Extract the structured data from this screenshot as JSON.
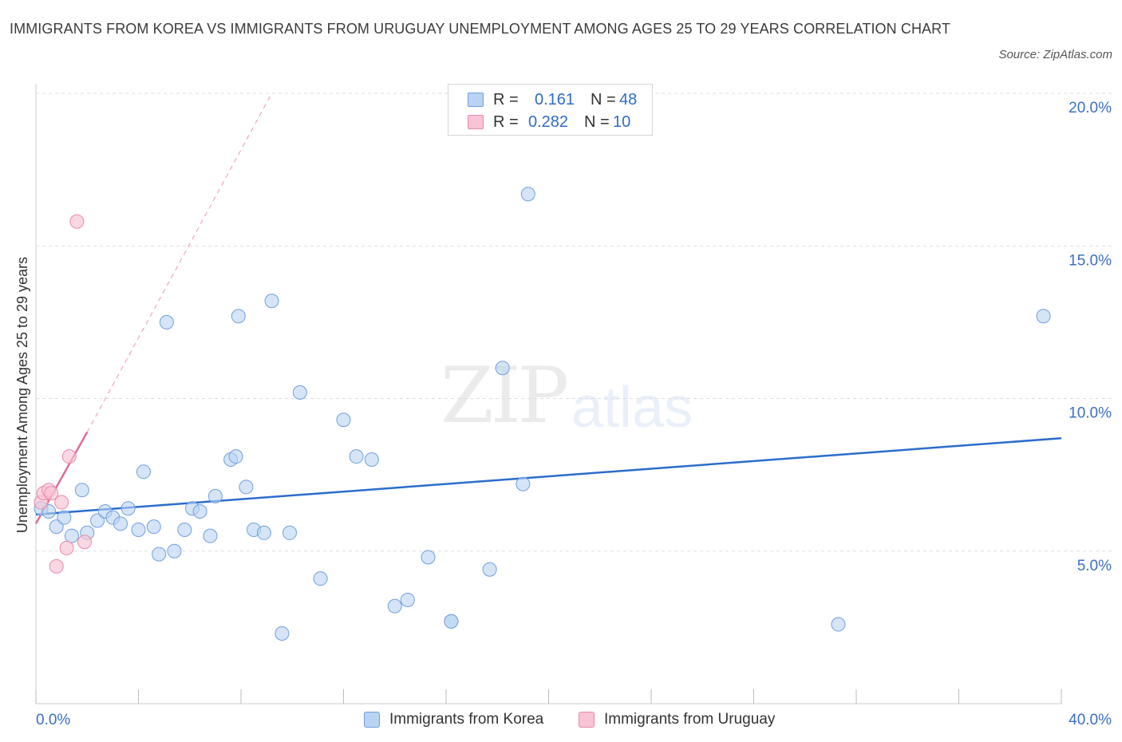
{
  "title": "IMMIGRANTS FROM KOREA VS IMMIGRANTS FROM URUGUAY UNEMPLOYMENT AMONG AGES 25 TO 29 YEARS CORRELATION CHART",
  "source": "Source: ZipAtlas.com",
  "watermark": {
    "zip": "ZIP",
    "atlas": "atlas"
  },
  "legend": {
    "korea": {
      "r_label": "R =",
      "r_value": "0.161",
      "n_label": "N =",
      "n_value": "48"
    },
    "uruguay": {
      "r_label": "R =",
      "r_value": "0.282",
      "n_label": "N =",
      "n_value": "10"
    }
  },
  "bottom_legend": {
    "korea": "Immigrants from Korea",
    "uruguay": "Immigrants from Uruguay"
  },
  "colors": {
    "korea_fill": "#b9d3f2",
    "korea_stroke": "#6f9fe0",
    "korea_line": "#2a6dcc",
    "uruguay_fill": "#f8c3d4",
    "uruguay_stroke": "#e889a8",
    "uruguay_line": "#e06a98",
    "grid": "#dddddd",
    "axis_text": "#3a6fc4"
  },
  "chart_data": {
    "type": "scatter",
    "title": "IMMIGRANTS FROM KOREA VS IMMIGRANTS FROM URUGUAY UNEMPLOYMENT AMONG AGES 25 TO 29 YEARS CORRELATION CHART",
    "xlabel": "",
    "ylabel": "Unemployment Among Ages 25 to 29 years",
    "xlim": [
      0,
      40
    ],
    "ylim": [
      0,
      20
    ],
    "x_tick_labels": [
      {
        "value": 0,
        "label": "0.0%"
      },
      {
        "value": 40,
        "label": "40.0%"
      }
    ],
    "y_tick_labels": [
      {
        "value": 5,
        "label": "5.0%"
      },
      {
        "value": 10,
        "label": "10.0%"
      },
      {
        "value": 15,
        "label": "15.0%"
      },
      {
        "value": 20,
        "label": "20.0%"
      }
    ],
    "series": [
      {
        "name": "Immigrants from Korea",
        "trend": {
          "x": [
            0,
            40
          ],
          "y": [
            6.2,
            8.7
          ]
        },
        "points": [
          {
            "x": 0.2,
            "y": 6.4
          },
          {
            "x": 0.5,
            "y": 6.3
          },
          {
            "x": 0.8,
            "y": 5.8
          },
          {
            "x": 1.1,
            "y": 6.1
          },
          {
            "x": 1.4,
            "y": 5.5
          },
          {
            "x": 1.8,
            "y": 7.0
          },
          {
            "x": 2.0,
            "y": 5.6
          },
          {
            "x": 2.4,
            "y": 6.0
          },
          {
            "x": 2.7,
            "y": 6.3
          },
          {
            "x": 3.0,
            "y": 6.1
          },
          {
            "x": 3.3,
            "y": 5.9
          },
          {
            "x": 3.6,
            "y": 6.4
          },
          {
            "x": 4.0,
            "y": 5.7
          },
          {
            "x": 4.2,
            "y": 7.6
          },
          {
            "x": 4.6,
            "y": 5.8
          },
          {
            "x": 4.8,
            "y": 4.9
          },
          {
            "x": 5.1,
            "y": 12.5
          },
          {
            "x": 5.4,
            "y": 5.0
          },
          {
            "x": 5.8,
            "y": 5.7
          },
          {
            "x": 6.1,
            "y": 6.4
          },
          {
            "x": 6.4,
            "y": 6.3
          },
          {
            "x": 6.8,
            "y": 5.5
          },
          {
            "x": 7.0,
            "y": 6.8
          },
          {
            "x": 7.6,
            "y": 8.0
          },
          {
            "x": 7.8,
            "y": 8.1
          },
          {
            "x": 7.9,
            "y": 12.7
          },
          {
            "x": 8.2,
            "y": 7.1
          },
          {
            "x": 8.5,
            "y": 5.7
          },
          {
            "x": 8.9,
            "y": 5.6
          },
          {
            "x": 9.2,
            "y": 13.2
          },
          {
            "x": 9.6,
            "y": 2.3
          },
          {
            "x": 9.9,
            "y": 5.6
          },
          {
            "x": 10.3,
            "y": 10.2
          },
          {
            "x": 11.1,
            "y": 4.1
          },
          {
            "x": 12.0,
            "y": 9.3
          },
          {
            "x": 12.5,
            "y": 8.1
          },
          {
            "x": 13.1,
            "y": 8.0
          },
          {
            "x": 14.0,
            "y": 3.2
          },
          {
            "x": 14.5,
            "y": 3.4
          },
          {
            "x": 15.3,
            "y": 4.8
          },
          {
            "x": 16.2,
            "y": 2.7
          },
          {
            "x": 16.2,
            "y": 2.7
          },
          {
            "x": 17.7,
            "y": 4.4
          },
          {
            "x": 18.2,
            "y": 11.0
          },
          {
            "x": 19.0,
            "y": 7.2
          },
          {
            "x": 19.2,
            "y": 16.7
          },
          {
            "x": 31.3,
            "y": 2.6
          },
          {
            "x": 39.3,
            "y": 12.7
          }
        ]
      },
      {
        "name": "Immigrants from Uruguay",
        "trend": {
          "x": [
            0,
            2.0
          ],
          "y": [
            5.9,
            8.9
          ],
          "extended_x": [
            2.0,
            9.2
          ],
          "extended_y": [
            8.9,
            20.0
          ]
        },
        "points": [
          {
            "x": 0.2,
            "y": 6.6
          },
          {
            "x": 0.3,
            "y": 6.9
          },
          {
            "x": 0.5,
            "y": 7.0
          },
          {
            "x": 0.6,
            "y": 6.9
          },
          {
            "x": 0.8,
            "y": 4.5
          },
          {
            "x": 1.0,
            "y": 6.6
          },
          {
            "x": 1.2,
            "y": 5.1
          },
          {
            "x": 1.3,
            "y": 8.1
          },
          {
            "x": 1.9,
            "y": 5.3
          },
          {
            "x": 1.6,
            "y": 15.8
          }
        ]
      }
    ]
  }
}
